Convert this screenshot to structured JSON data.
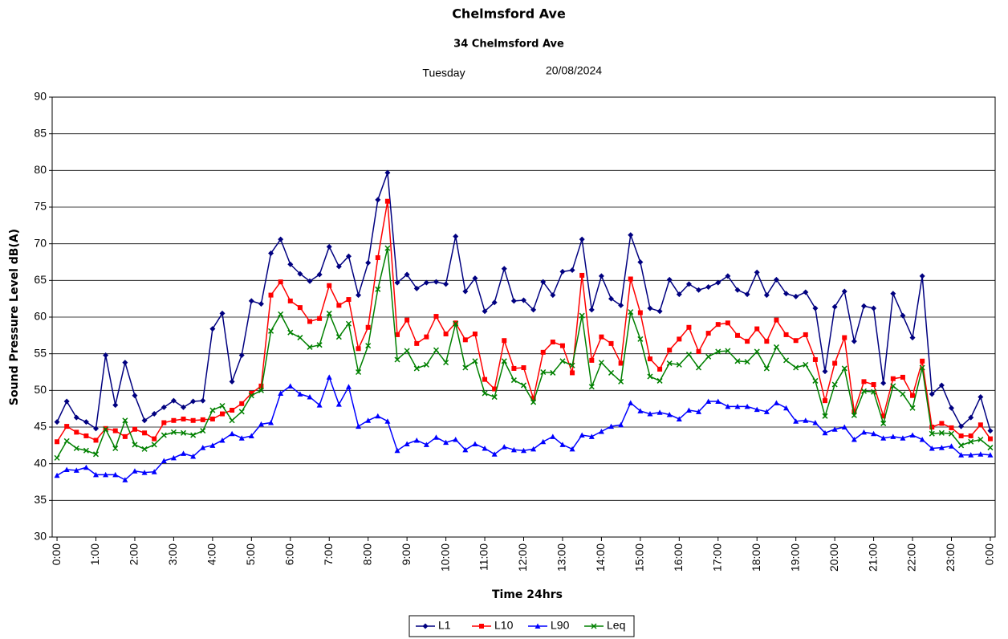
{
  "chart_data": {
    "type": "line",
    "title": "Chelmsford Ave",
    "subtitle": "34 Chelmsford Ave",
    "day": "Tuesday",
    "date": "20/08/2024",
    "ylabel": "Sound Pressure Level dB(A)",
    "xlabel": "Time 24hrs",
    "ylim": [
      30,
      90
    ],
    "yticks": [
      30,
      35,
      40,
      45,
      50,
      55,
      60,
      65,
      70,
      75,
      80,
      85,
      90
    ],
    "grid": true,
    "legend": "bottom",
    "categories": [
      "0:00",
      null,
      null,
      null,
      "1:00",
      null,
      null,
      null,
      "2:00",
      null,
      null,
      null,
      "3:00",
      null,
      null,
      null,
      "4:00",
      null,
      null,
      null,
      "5:00",
      null,
      null,
      null,
      "6:00",
      null,
      null,
      null,
      "7:00",
      null,
      null,
      null,
      "8:00",
      null,
      null,
      null,
      "9:00",
      null,
      null,
      null,
      "10:00",
      null,
      null,
      null,
      "11:00",
      null,
      null,
      null,
      "12:00",
      null,
      null,
      null,
      "13:00",
      null,
      null,
      null,
      "14:00",
      null,
      null,
      null,
      "15:00",
      null,
      null,
      null,
      "16:00",
      null,
      null,
      null,
      "17:00",
      null,
      null,
      null,
      "18:00",
      null,
      null,
      null,
      "19:00",
      null,
      null,
      null,
      "20:00",
      null,
      null,
      null,
      "21:00",
      null,
      null,
      null,
      "22:00",
      null,
      null,
      null,
      "23:00",
      null,
      null,
      null,
      "0:00"
    ],
    "series": [
      {
        "name": "L1",
        "color": "#000080",
        "marker": "diamond",
        "values": [
          45.7,
          48.5,
          46.3,
          45.7,
          44.8,
          54.8,
          48.0,
          53.8,
          49.3,
          45.9,
          46.8,
          47.7,
          48.6,
          47.7,
          48.5,
          48.6,
          58.4,
          60.5,
          51.2,
          54.8,
          62.2,
          61.8,
          68.7,
          70.6,
          67.2,
          65.9,
          64.9,
          65.8,
          69.6,
          66.9,
          68.3,
          63.0,
          67.4,
          76.0,
          79.7,
          64.7,
          65.8,
          63.9,
          64.7,
          64.8,
          64.5,
          71.0,
          63.5,
          65.3,
          60.8,
          62.0,
          66.6,
          62.2,
          62.3,
          61.0,
          64.8,
          63.0,
          66.2,
          66.4,
          70.6,
          61.0,
          65.6,
          62.5,
          61.6,
          71.2,
          67.5,
          61.2,
          60.8,
          65.1,
          63.1,
          64.5,
          63.7,
          64.1,
          64.7,
          65.6,
          63.7,
          63.1,
          66.1,
          63.0,
          65.1,
          63.2,
          62.8,
          63.4,
          61.2,
          52.6,
          61.4,
          63.5,
          56.7,
          61.5,
          61.2,
          51.0,
          63.2,
          60.2,
          57.2,
          65.6,
          49.5,
          50.7,
          47.6,
          45.1,
          46.3,
          49.1,
          44.5
        ]
      },
      {
        "name": "L10",
        "color": "#ff0000",
        "marker": "square",
        "values": [
          43.0,
          45.1,
          44.3,
          43.8,
          43.2,
          44.8,
          44.5,
          43.7,
          44.7,
          44.2,
          43.4,
          45.6,
          45.9,
          46.1,
          45.9,
          46.0,
          46.1,
          46.8,
          47.3,
          48.2,
          49.6,
          50.6,
          63.0,
          64.8,
          62.2,
          61.3,
          59.4,
          59.8,
          64.3,
          61.6,
          62.4,
          55.7,
          58.6,
          68.1,
          75.8,
          57.6,
          59.6,
          56.4,
          57.3,
          60.1,
          57.7,
          59.2,
          56.9,
          57.7,
          51.5,
          50.2,
          56.8,
          53.0,
          53.1,
          48.9,
          55.2,
          56.6,
          56.1,
          52.4,
          65.7,
          54.1,
          57.3,
          56.4,
          53.7,
          65.2,
          60.6,
          54.3,
          52.9,
          55.5,
          57.0,
          58.6,
          55.3,
          57.8,
          59.0,
          59.2,
          57.5,
          56.7,
          58.4,
          56.7,
          59.6,
          57.6,
          56.8,
          57.6,
          54.2,
          48.6,
          53.7,
          57.2,
          47.1,
          51.2,
          50.8,
          46.5,
          51.6,
          51.8,
          49.3,
          54.0,
          45.0,
          45.5,
          44.9,
          43.8,
          43.8,
          45.3,
          43.4
        ]
      },
      {
        "name": "L90",
        "color": "#0000ff",
        "marker": "triangle",
        "values": [
          38.4,
          39.2,
          39.1,
          39.5,
          38.5,
          38.5,
          38.5,
          37.8,
          39.0,
          38.8,
          38.9,
          40.4,
          40.8,
          41.4,
          41.0,
          42.2,
          42.5,
          43.2,
          44.1,
          43.5,
          43.8,
          45.4,
          45.6,
          49.6,
          50.6,
          49.5,
          49.1,
          48.0,
          51.8,
          48.1,
          50.5,
          45.1,
          45.9,
          46.5,
          45.8,
          41.8,
          42.7,
          43.2,
          42.6,
          43.6,
          42.9,
          43.3,
          41.9,
          42.7,
          42.1,
          41.3,
          42.3,
          41.9,
          41.8,
          42.0,
          43.0,
          43.7,
          42.6,
          42.0,
          43.9,
          43.7,
          44.4,
          45.1,
          45.3,
          48.3,
          47.2,
          46.8,
          47.0,
          46.7,
          46.1,
          47.3,
          47.1,
          48.5,
          48.5,
          47.8,
          47.8,
          47.8,
          47.4,
          47.1,
          48.3,
          47.6,
          45.8,
          45.9,
          45.6,
          44.2,
          44.7,
          45.0,
          43.3,
          44.3,
          44.1,
          43.5,
          43.7,
          43.5,
          43.9,
          43.3,
          42.1,
          42.2,
          42.4,
          41.2,
          41.2,
          41.3,
          41.2
        ]
      },
      {
        "name": "Leq",
        "color": "#008000",
        "marker": "x",
        "values": [
          40.8,
          43.1,
          42.1,
          41.8,
          41.3,
          44.7,
          42.1,
          45.9,
          42.6,
          42.0,
          42.6,
          43.9,
          44.3,
          44.2,
          43.9,
          44.5,
          47.3,
          47.9,
          45.9,
          47.1,
          49.3,
          50.0,
          58.1,
          60.4,
          57.9,
          57.2,
          55.9,
          56.2,
          60.5,
          57.3,
          59.1,
          52.5,
          56.1,
          63.8,
          69.4,
          54.2,
          55.4,
          53.0,
          53.5,
          55.5,
          53.8,
          59.1,
          53.1,
          54.0,
          49.6,
          49.1,
          54.0,
          51.4,
          50.7,
          48.4,
          52.5,
          52.4,
          54.0,
          53.4,
          60.2,
          50.5,
          53.8,
          52.4,
          51.2,
          60.7,
          57.0,
          51.9,
          51.3,
          53.7,
          53.5,
          54.9,
          53.1,
          54.6,
          55.3,
          55.4,
          54.0,
          53.9,
          55.3,
          53.0,
          55.9,
          54.1,
          53.1,
          53.5,
          51.3,
          46.5,
          50.8,
          53.0,
          46.6,
          49.9,
          49.8,
          45.5,
          50.6,
          49.5,
          47.6,
          53.1,
          44.1,
          44.2,
          44.1,
          42.5,
          43.0,
          43.3,
          42.2
        ]
      }
    ]
  }
}
